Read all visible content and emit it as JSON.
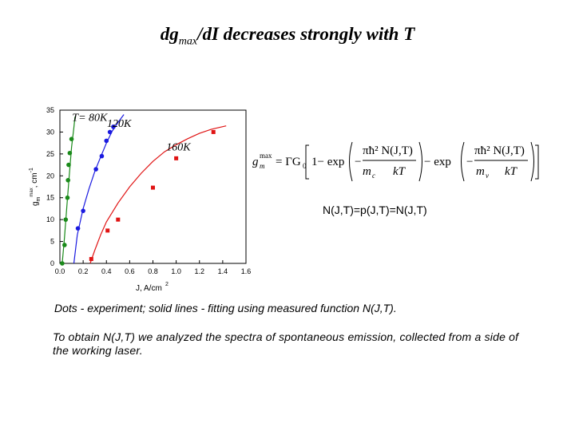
{
  "slide": {
    "title_main": "dg",
    "title_sub": "max",
    "title_rest": "/dI decreases strongly with T",
    "n_relation": "N(J,T)=p(J,T)=N(J,T)",
    "caption_1": "Dots - experiment; solid lines - fitting using measured function  N(J,T).",
    "caption_2": "To obtain  N(J,T) we analyzed the spectra of spontaneous emission, collected from a side of the working laser."
  },
  "formula": {
    "lhs": "g",
    "lhs_sup": "max",
    "lhs_sub": "m",
    "eq": "= ΓG",
    "g_sub": "0",
    "one_minus": "1− exp",
    "num": "πħ² N(J,T)",
    "den_c": "m",
    "den_c_sub": "c",
    "den_v": "m",
    "den_v_sub": "v",
    "kT": "kT",
    "minus_exp": "− exp"
  },
  "chart_data": {
    "type": "scatter",
    "xlabel": "J, A/cm",
    "xlabel_sup": "2",
    "ylabel": "g",
    "ylabel_sup": "max",
    "ylabel_sub": "m",
    "ylabel_unit": ", cm",
    "ylabel_unit_sup": "-1",
    "xlim": [
      0.0,
      1.6
    ],
    "ylim": [
      0,
      35
    ],
    "xticks": [
      "0.0",
      "0.2",
      "0.4",
      "0.6",
      "0.8",
      "1.0",
      "1.2",
      "1.4",
      "1.6"
    ],
    "yticks": [
      "0",
      "5",
      "10",
      "15",
      "20",
      "25",
      "30",
      "35"
    ],
    "grid": false,
    "annotations": [
      {
        "text": "T= 80K",
        "x": 0.16,
        "y": 32.5
      },
      {
        "text": "120K",
        "x": 0.46,
        "y": 31.2
      },
      {
        "text": "160K",
        "x": 0.97,
        "y": 25.8
      }
    ],
    "series": [
      {
        "color": "#1a8a1a",
        "marker": "circle",
        "points": [
          [
            0.02,
            0.0
          ],
          [
            0.04,
            4.2
          ],
          [
            0.05,
            10.0
          ],
          [
            0.065,
            15.0
          ],
          [
            0.07,
            19.0
          ],
          [
            0.075,
            22.5
          ],
          [
            0.085,
            25.2
          ],
          [
            0.1,
            28.4
          ]
        ],
        "fit": [
          [
            0.02,
            0.0
          ],
          [
            0.04,
            6.0
          ],
          [
            0.06,
            13.0
          ],
          [
            0.08,
            20.0
          ],
          [
            0.1,
            26.5
          ],
          [
            0.12,
            31.0
          ],
          [
            0.13,
            33.5
          ]
        ]
      },
      {
        "color": "#1a1ae0",
        "marker": "circle",
        "points": [
          [
            0.155,
            8.0
          ],
          [
            0.2,
            12.0
          ],
          [
            0.31,
            21.5
          ],
          [
            0.36,
            24.5
          ],
          [
            0.4,
            28.0
          ],
          [
            0.43,
            30.0
          ],
          [
            0.46,
            31.2
          ]
        ],
        "fit": [
          [
            0.12,
            0.0
          ],
          [
            0.15,
            6.5
          ],
          [
            0.2,
            12.5
          ],
          [
            0.25,
            17.0
          ],
          [
            0.3,
            21.0
          ],
          [
            0.35,
            24.3
          ],
          [
            0.4,
            27.5
          ],
          [
            0.45,
            30.2
          ],
          [
            0.5,
            32.2
          ],
          [
            0.55,
            34.0
          ]
        ]
      },
      {
        "color": "#e01414",
        "marker": "square",
        "points": [
          [
            0.27,
            1.0
          ],
          [
            0.41,
            7.5
          ],
          [
            0.5,
            10.0
          ],
          [
            0.8,
            17.3
          ],
          [
            1.0,
            24.0
          ],
          [
            1.32,
            30.0
          ]
        ],
        "fit": [
          [
            0.26,
            0.0
          ],
          [
            0.3,
            3.0
          ],
          [
            0.35,
            6.5
          ],
          [
            0.4,
            9.5
          ],
          [
            0.5,
            13.8
          ],
          [
            0.6,
            17.5
          ],
          [
            0.7,
            20.6
          ],
          [
            0.8,
            23.3
          ],
          [
            0.9,
            25.5
          ],
          [
            1.0,
            27.1
          ],
          [
            1.1,
            28.5
          ],
          [
            1.2,
            29.7
          ],
          [
            1.3,
            30.6
          ],
          [
            1.43,
            31.4
          ]
        ]
      }
    ]
  }
}
